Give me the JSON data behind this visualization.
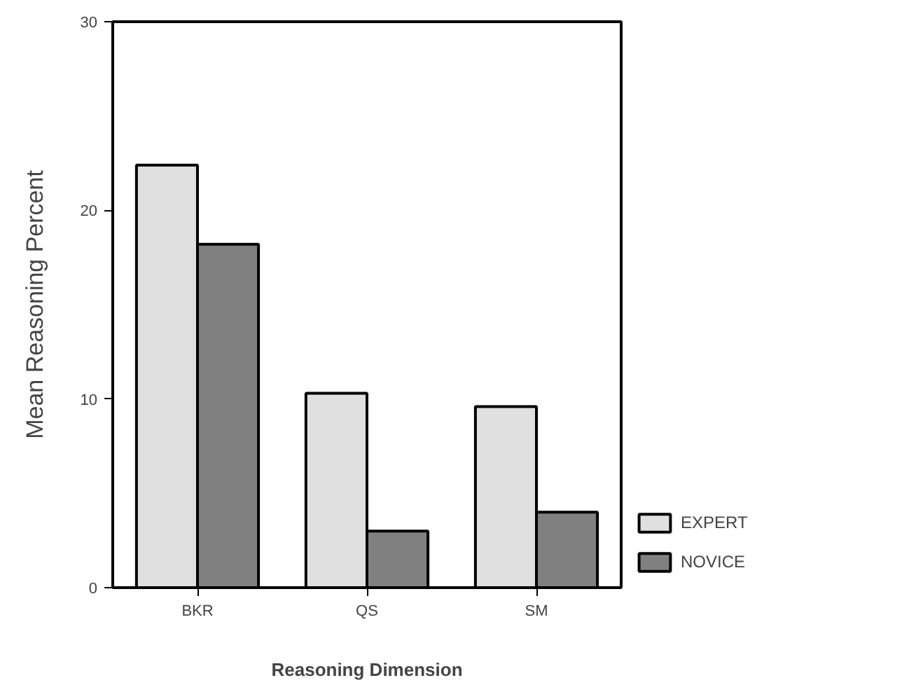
{
  "chart_data": {
    "type": "bar",
    "xlabel": "Reasoning Dimension",
    "ylabel": "Mean Reasoning Percent",
    "categories": [
      "BKR",
      "QS",
      "SM"
    ],
    "series": [
      {
        "name": "EXPERT",
        "color": "#e0e0e0",
        "values": [
          22.4,
          10.3,
          9.6
        ]
      },
      {
        "name": "NOVICE",
        "color": "#808080",
        "values": [
          18.2,
          3.0,
          4.0
        ]
      }
    ],
    "ylim": [
      0,
      30
    ],
    "yticks": [
      0,
      10,
      20,
      30
    ],
    "legend": "bottom right",
    "grid": false
  }
}
